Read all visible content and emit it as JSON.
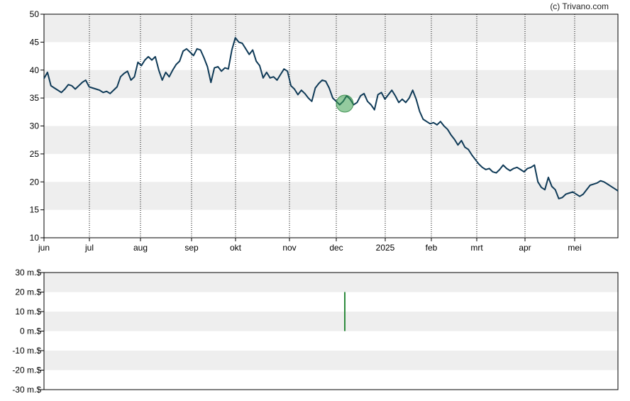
{
  "credit": "(c) Trivano.com",
  "chart_data": [
    {
      "type": "line",
      "title": "",
      "xlabel": "",
      "ylabel": "",
      "ylim": [
        10,
        50
      ],
      "yticks": [
        "10",
        "15",
        "20",
        "25",
        "30",
        "35",
        "40",
        "45",
        "50"
      ],
      "xtick_labels": [
        "jun",
        "jul",
        "aug",
        "sep",
        "okt",
        "nov",
        "dec",
        "2025",
        "feb",
        "mrt",
        "apr",
        "mei"
      ],
      "grid": true,
      "line_color": "#0f3a57",
      "band_color": "#eeeeee",
      "series": [
        {
          "values": [
            38.5,
            39.6,
            37.2,
            36.8,
            36.4,
            36.0,
            36.6,
            37.4,
            37.2,
            36.6,
            37.2,
            37.8,
            38.2,
            37.0,
            36.8,
            36.6,
            36.4,
            36.0,
            36.2,
            35.8,
            36.4,
            37.0,
            38.8,
            39.4,
            39.8,
            38.2,
            38.8,
            41.4,
            40.8,
            41.8,
            42.4,
            41.8,
            42.4,
            40.0,
            38.2,
            39.6,
            38.8,
            40.0,
            41.0,
            41.6,
            43.4,
            43.8,
            43.2,
            42.6,
            43.8,
            43.6,
            42.2,
            40.6,
            37.8,
            40.4,
            40.6,
            39.8,
            40.4,
            40.2,
            43.6,
            45.8,
            45.0,
            44.8,
            43.8,
            42.8,
            43.6,
            41.6,
            40.8,
            38.6,
            39.6,
            38.6,
            38.8,
            38.2,
            39.2,
            40.2,
            39.8,
            37.2,
            36.6,
            35.6,
            36.4,
            35.8,
            35.0,
            34.4,
            36.8,
            37.6,
            38.2,
            38.0,
            36.8,
            35.0,
            34.4,
            33.8,
            34.4,
            35.4,
            34.8,
            33.8,
            34.2,
            35.4,
            35.8,
            34.4,
            33.8,
            32.9,
            35.6,
            36.0,
            34.8,
            35.6,
            36.4,
            35.4,
            34.2,
            34.8,
            34.2,
            35.0,
            36.4,
            34.8,
            32.6,
            31.2,
            30.8,
            30.4,
            30.6,
            30.2,
            30.8,
            30.0,
            29.4,
            28.4,
            27.6,
            26.6,
            27.4,
            26.2,
            25.8,
            24.8,
            24.0,
            23.2,
            22.6,
            22.2,
            22.4,
            21.8,
            21.6,
            22.2,
            23.0,
            22.4,
            22.0,
            22.4,
            22.6,
            22.2,
            21.8,
            22.4,
            22.6,
            23.0,
            20.0,
            19.0,
            18.6,
            20.8,
            19.2,
            18.6,
            17.0,
            17.2,
            17.8,
            18.0,
            18.2,
            17.8,
            17.4,
            17.8,
            18.6,
            19.4,
            19.6,
            19.8,
            20.2,
            20.0,
            19.6,
            19.2,
            18.8,
            18.4
          ]
        }
      ],
      "marker_value": 34.0
    },
    {
      "type": "bar",
      "title": "",
      "xlabel": "",
      "ylabel": "",
      "ylim": [
        -30,
        30
      ],
      "yticks": [
        "30 m.$",
        "20 m.$",
        "10 m.$",
        "0 m.$",
        "-10 m.$",
        "-20 m.$",
        "-30 m.$"
      ],
      "grid": true,
      "bar_color": "#2e8b3d",
      "band_color": "#eeeeee",
      "series": [
        {
          "values": [
            20
          ]
        }
      ]
    }
  ]
}
